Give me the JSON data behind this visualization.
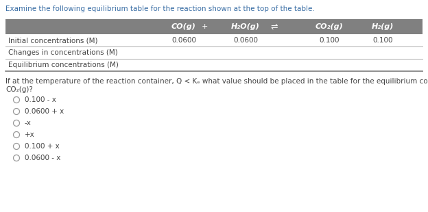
{
  "title": "Examine the following equilibrium table for the reaction shown at the top of the table.",
  "header_bg": "#808080",
  "header_text_color": "#ffffff",
  "col_headers": [
    "CO(g)",
    "+",
    "H₂O(g)",
    "⇌",
    "CO₂(g)",
    "H₂(g)"
  ],
  "row_labels": [
    "Initial concentrations (M)",
    "Changes in concentrations (M)",
    "Equilibrium concentrations (M)"
  ],
  "data_row0": [
    "0.0600",
    "",
    "0.0600",
    "",
    "0.100",
    "0.100"
  ],
  "data_row1": [
    "",
    "",
    "",
    "",
    "",
    ""
  ],
  "data_row2": [
    "",
    "",
    "",
    "",
    "",
    ""
  ],
  "question_line1": "If at the temperature of the reaction container, Q < Kₑ what value should be placed in the table for the equilibrium concentration of",
  "question_line2": "CO₂(g)?",
  "options": [
    "0.100 - x",
    "0.0600 + x",
    "-x",
    "+x",
    "0.100 + x",
    "0.0600 - x"
  ],
  "title_color": "#3a6ea5",
  "body_text_color": "#444444",
  "question_color": "#444444",
  "option_number_color": "#555555",
  "background_color": "#ffffff",
  "line_color": "#aaaaaa"
}
